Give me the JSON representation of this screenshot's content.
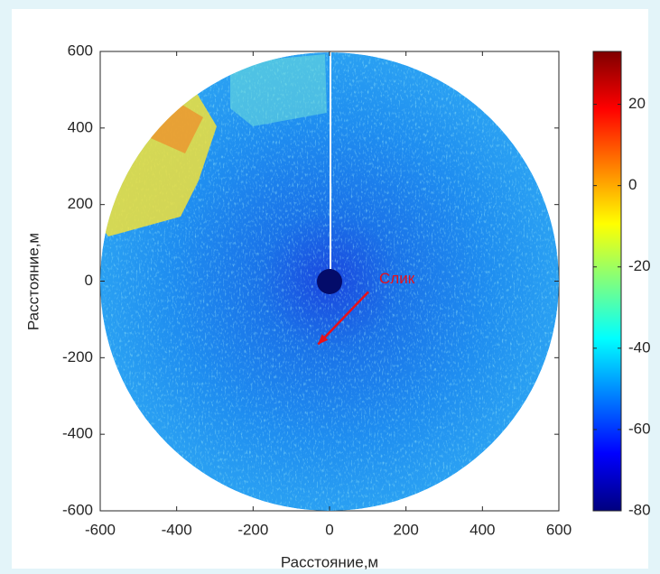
{
  "chart_data": {
    "type": "heatmap-image",
    "xlabel": "Расстояние,м",
    "ylabel": "Расстояние,м",
    "xlim": [
      -600,
      600
    ],
    "ylim": [
      -600,
      600
    ],
    "xticks": [
      -600,
      -400,
      -200,
      0,
      200,
      400,
      600
    ],
    "yticks": [
      -600,
      -400,
      -200,
      0,
      200,
      400,
      600
    ],
    "colormap": "jet",
    "clim": [
      -80,
      33
    ],
    "cticks": [
      -80,
      -60,
      -40,
      -20,
      0,
      20
    ],
    "annotation": {
      "text": "Слик",
      "color": "#e8101a",
      "xy": [
        -30,
        -165
      ],
      "text_xy": [
        130,
        5
      ]
    }
  }
}
